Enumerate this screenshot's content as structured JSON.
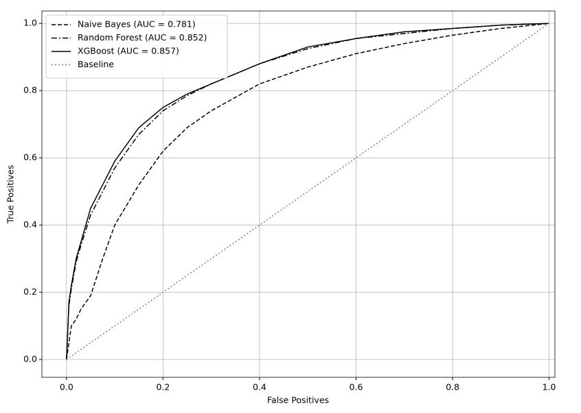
{
  "chart_data": {
    "type": "line",
    "xlabel": "False Positives",
    "ylabel": "True Positives",
    "x": [
      0,
      0.005,
      0.01,
      0.02,
      0.03,
      0.05,
      0.075,
      0.1,
      0.15,
      0.2,
      0.25,
      0.3,
      0.4,
      0.5,
      0.6,
      0.7,
      0.8,
      0.9,
      1.0
    ],
    "series": [
      {
        "name": "Naive Bayes (AUC = 0.781)",
        "color": "#000000",
        "linestyle": "dashed",
        "values": [
          0,
          0.05,
          0.1,
          0.12,
          0.15,
          0.19,
          0.3,
          0.4,
          0.52,
          0.62,
          0.69,
          0.74,
          0.82,
          0.87,
          0.91,
          0.94,
          0.965,
          0.985,
          1
        ]
      },
      {
        "name": "Random Forest (AUC = 0.852)",
        "color": "#000000",
        "linestyle": "dashdot",
        "values": [
          0,
          0.16,
          0.21,
          0.29,
          0.34,
          0.43,
          0.5,
          0.57,
          0.67,
          0.74,
          0.785,
          0.82,
          0.88,
          0.925,
          0.955,
          0.97,
          0.985,
          0.995,
          1
        ]
      },
      {
        "name": "XGBoost (AUC = 0.857)",
        "color": "#000000",
        "linestyle": "solid",
        "values": [
          0,
          0.17,
          0.22,
          0.3,
          0.35,
          0.45,
          0.52,
          0.59,
          0.69,
          0.75,
          0.79,
          0.82,
          0.88,
          0.93,
          0.955,
          0.975,
          0.985,
          0.995,
          1
        ]
      },
      {
        "name": "Baseline",
        "color": "#808080",
        "linestyle": "dotted",
        "values": [
          0,
          0.005,
          0.01,
          0.02,
          0.03,
          0.05,
          0.075,
          0.1,
          0.15,
          0.2,
          0.25,
          0.3,
          0.4,
          0.5,
          0.6,
          0.7,
          0.8,
          0.9,
          1.0
        ]
      }
    ],
    "xlim": [
      -0.051,
      1.012
    ],
    "ylim": [
      -0.053,
      1.037
    ],
    "xticks": [
      {
        "value": 0,
        "label": "0.0"
      },
      0.2,
      0.4,
      0.6,
      0.8,
      {
        "value": 1,
        "label": "1.0"
      }
    ],
    "yticks": [
      {
        "value": 0,
        "label": "0.0"
      },
      0.2,
      0.4,
      0.6,
      0.8,
      {
        "value": 1,
        "label": "1.0"
      }
    ],
    "grid": true,
    "legend": "upper left"
  }
}
